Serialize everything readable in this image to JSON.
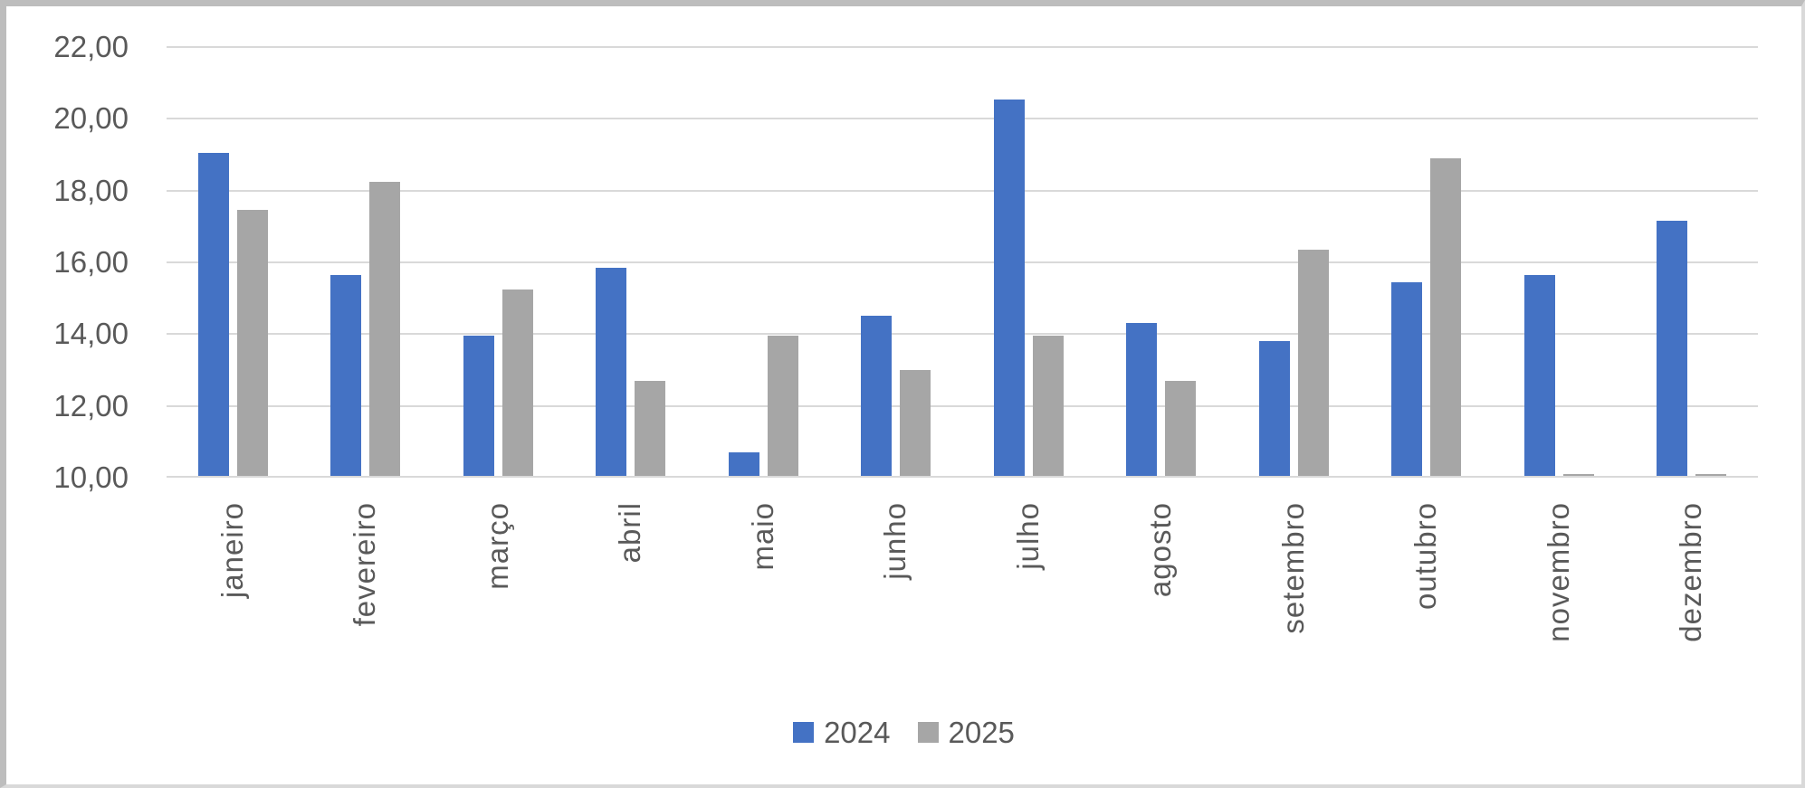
{
  "chart_data": {
    "type": "bar",
    "title": "",
    "xlabel": "",
    "ylabel": "",
    "categories": [
      "janeiro",
      "fevereiro",
      "março",
      "abril",
      "maio",
      "junho",
      "julho",
      "agosto",
      "setembro",
      "outubro",
      "novembro",
      "dezembro"
    ],
    "series": [
      {
        "name": "2024",
        "color": "#4472C4",
        "values": [
          19.0,
          15.6,
          13.9,
          15.8,
          10.65,
          14.45,
          20.5,
          14.25,
          13.75,
          15.4,
          15.6,
          17.1
        ]
      },
      {
        "name": "2025",
        "color": "#A6A6A6",
        "values": [
          17.4,
          18.2,
          15.2,
          12.65,
          13.9,
          12.95,
          13.9,
          12.65,
          16.3,
          18.85,
          10.05,
          10.05
        ]
      }
    ],
    "ylim": [
      10,
      22
    ],
    "y_tick_values": [
      22,
      20,
      18,
      16,
      14,
      12,
      10
    ],
    "y_ticks": [
      "22,00",
      "20,00",
      "18,00",
      "16,00",
      "14,00",
      "12,00",
      "10,00"
    ],
    "grid": true,
    "legend_position": "bottom",
    "colors": {
      "gridline": "#D9D9D9",
      "axis_line": "#D9D9D9",
      "text": "#595959",
      "frame_border_dark": "#BDBDBD",
      "frame_border_light": "#D9D9D9"
    }
  }
}
